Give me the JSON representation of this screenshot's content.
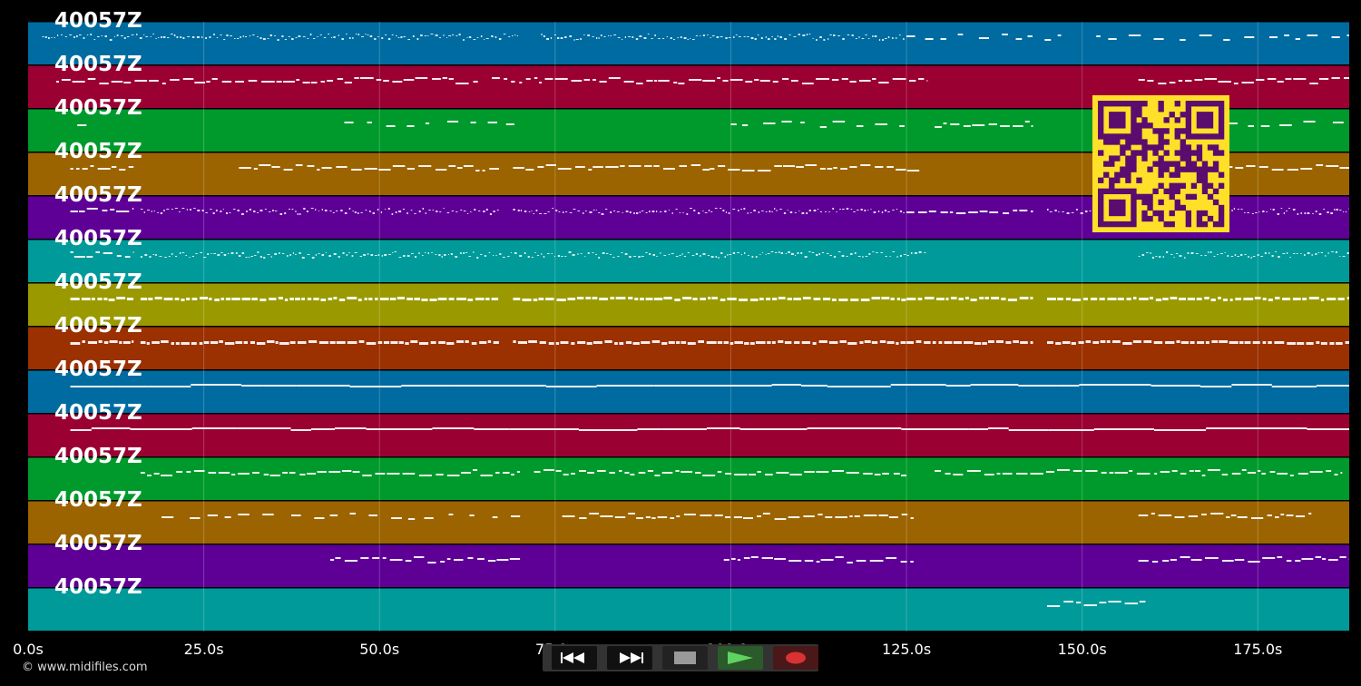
{
  "tracks": [
    {
      "label": "40057Z",
      "color": "#006ba0"
    },
    {
      "label": "40057Z",
      "color": "#9b0032"
    },
    {
      "label": "40057Z",
      "color": "#009a2c"
    },
    {
      "label": "40057Z",
      "color": "#9b6400"
    },
    {
      "label": "40057Z",
      "color": "#5e0096"
    },
    {
      "label": "40057Z",
      "color": "#009a9a"
    },
    {
      "label": "40057Z",
      "color": "#9a9a00"
    },
    {
      "label": "40057Z",
      "color": "#9b3000"
    },
    {
      "label": "40057Z",
      "color": "#006ba0"
    },
    {
      "label": "40057Z",
      "color": "#9b0032"
    },
    {
      "label": "40057Z",
      "color": "#009a2c"
    },
    {
      "label": "40057Z",
      "color": "#9b6400"
    },
    {
      "label": "40057Z",
      "color": "#5e0096"
    },
    {
      "label": "40057Z",
      "color": "#009a9a"
    }
  ],
  "timeline": {
    "ticks": [
      "0.0s",
      "25.0s",
      "50.0s",
      "75.0s",
      "100.0s",
      "125.0s",
      "150.0s",
      "175.0s"
    ],
    "tick_values": [
      0,
      25,
      50,
      75,
      100,
      125,
      150,
      175
    ],
    "max_seconds": 188
  },
  "transport": {
    "rewind": "rewind-icon",
    "fast_forward": "fast-forward-icon",
    "stop": "stop-icon",
    "play": "play-icon",
    "record": "record-icon"
  },
  "footer": {
    "copyright": "© www.midifiles.com"
  },
  "colors": {
    "background": "#000000",
    "note": "#ffffff",
    "qr_background": "#ffe028",
    "qr_modules": "#5a0d6e",
    "play": "#2e8b2e",
    "record": "#c82828"
  },
  "note_pattern": [
    [
      [
        2,
        70,
        "dot"
      ],
      [
        73,
        125,
        "dot"
      ],
      [
        125,
        147,
        "sparse"
      ],
      [
        152,
        188,
        "sparse"
      ]
    ],
    [
      [
        4,
        64,
        "dash"
      ],
      [
        66,
        96,
        "dash"
      ],
      [
        96,
        128,
        "dash"
      ],
      [
        158,
        188,
        "dash"
      ]
    ],
    [
      [
        7,
        10,
        "sparse"
      ],
      [
        45,
        70,
        "sparse"
      ],
      [
        100,
        125,
        "sparse"
      ],
      [
        129,
        143,
        "dash"
      ],
      [
        159,
        188,
        "sparse"
      ]
    ],
    [
      [
        6,
        15,
        "dash"
      ],
      [
        30,
        67,
        "dash"
      ],
      [
        69,
        97,
        "dash"
      ],
      [
        97,
        127,
        "dash"
      ],
      [
        160,
        188,
        "dash"
      ]
    ],
    [
      [
        6,
        15,
        "dash"
      ],
      [
        16,
        67,
        "dot"
      ],
      [
        69,
        125,
        "dot"
      ],
      [
        125,
        143,
        "dash"
      ],
      [
        145,
        188,
        "dot"
      ]
    ],
    [
      [
        6,
        15,
        "dash"
      ],
      [
        16,
        128,
        "dot"
      ],
      [
        158,
        188,
        "dot"
      ]
    ],
    [
      [
        6,
        15,
        "thick"
      ],
      [
        16,
        67,
        "thick"
      ],
      [
        69,
        125,
        "thick"
      ],
      [
        125,
        143,
        "thick"
      ],
      [
        145,
        188,
        "thick"
      ]
    ],
    [
      [
        6,
        15,
        "thick"
      ],
      [
        16,
        67,
        "thick"
      ],
      [
        69,
        125,
        "thick"
      ],
      [
        125,
        143,
        "thick"
      ],
      [
        145,
        188,
        "thick"
      ]
    ],
    [
      [
        6,
        188,
        "line"
      ]
    ],
    [
      [
        6,
        188,
        "line"
      ]
    ],
    [
      [
        16,
        70,
        "dash"
      ],
      [
        72,
        125,
        "dash"
      ],
      [
        129,
        187,
        "dash"
      ]
    ],
    [
      [
        19,
        70,
        "sparse"
      ],
      [
        76,
        126,
        "dash"
      ],
      [
        158,
        183,
        "dash"
      ]
    ],
    [
      [
        43,
        70,
        "dash"
      ],
      [
        99,
        126,
        "dash"
      ],
      [
        158,
        188,
        "dash"
      ]
    ],
    [
      [
        145,
        159,
        "dash"
      ]
    ]
  ]
}
